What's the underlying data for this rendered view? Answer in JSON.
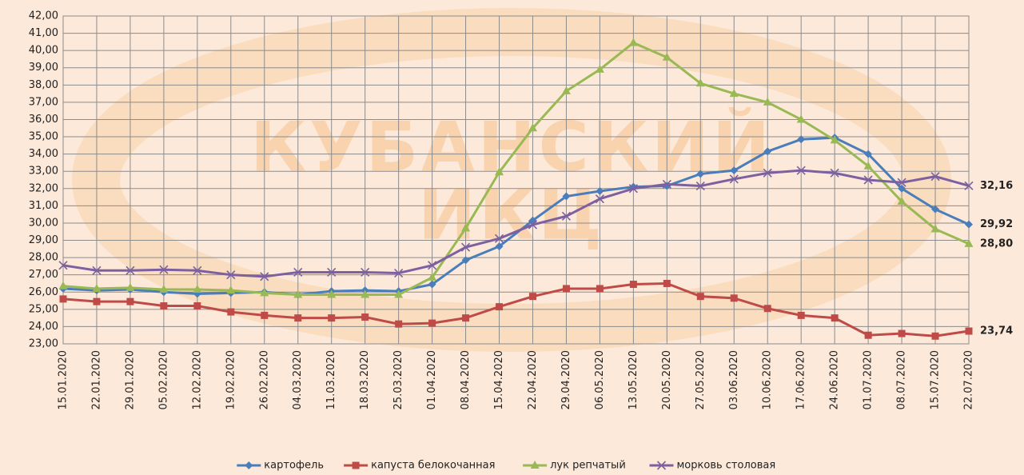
{
  "chart_data": {
    "type": "line",
    "watermark": [
      "КУБАНСКИЙ",
      "ИКЦ"
    ],
    "categories": [
      "15.01.2020",
      "22.01.2020",
      "29.01.2020",
      "05.02.2020",
      "12.02.2020",
      "19.02.2020",
      "26.02.2020",
      "04.03.2020",
      "11.03.2020",
      "18.03.2020",
      "25.03.2020",
      "01.04.2020",
      "08.04.2020",
      "15.04.2020",
      "22.04.2020",
      "29.04.2020",
      "06.05.2020",
      "13.05.2020",
      "20.05.2020",
      "27.05.2020",
      "03.06.2020",
      "10.06.2020",
      "17.06.2020",
      "24.06.2020",
      "01.07.2020",
      "08.07.2020",
      "15.07.2020",
      "22.07.2020"
    ],
    "series": [
      {
        "name": "картофель",
        "color": "#4a7ebb",
        "marker": "diamond",
        "values": [
          26.2,
          26.1,
          26.15,
          26.0,
          25.9,
          25.95,
          26.0,
          25.85,
          26.05,
          26.1,
          26.05,
          26.45,
          27.85,
          28.65,
          30.15,
          31.55,
          31.85,
          32.1,
          32.15,
          32.85,
          33.05,
          34.15,
          34.85,
          34.95,
          34.0,
          32.0,
          30.8,
          29.92
        ],
        "value_labels": [
          null,
          null,
          null,
          null,
          null,
          null,
          null,
          null,
          null,
          null,
          null,
          null,
          null,
          null,
          null,
          null,
          null,
          null,
          null,
          null,
          null,
          null,
          null,
          null,
          null,
          null,
          null,
          "29,92"
        ]
      },
      {
        "name": "капуста белокочанная",
        "color": "#be4b48",
        "marker": "square",
        "values": [
          25.6,
          25.45,
          25.45,
          25.2,
          25.2,
          24.85,
          24.65,
          24.5,
          24.5,
          24.55,
          24.15,
          24.2,
          24.5,
          25.15,
          25.75,
          26.2,
          26.2,
          26.45,
          26.5,
          25.75,
          25.65,
          25.05,
          24.65,
          24.5,
          23.5,
          23.6,
          23.45,
          23.74
        ],
        "value_labels": [
          null,
          null,
          null,
          null,
          null,
          null,
          null,
          null,
          null,
          null,
          null,
          null,
          null,
          null,
          null,
          null,
          null,
          null,
          null,
          null,
          null,
          null,
          null,
          null,
          null,
          null,
          null,
          "23,74"
        ]
      },
      {
        "name": "лук репчатый",
        "color": "#98b954",
        "marker": "triangle",
        "values": [
          26.35,
          26.2,
          26.25,
          26.15,
          26.15,
          26.1,
          25.95,
          25.85,
          25.85,
          25.85,
          25.85,
          26.85,
          29.7,
          32.95,
          35.5,
          37.65,
          38.9,
          40.45,
          39.6,
          38.1,
          37.5,
          37.0,
          36.0,
          34.8,
          33.3,
          31.25,
          29.65,
          28.8
        ],
        "value_labels": [
          null,
          null,
          null,
          null,
          null,
          null,
          null,
          null,
          null,
          null,
          null,
          null,
          null,
          null,
          null,
          null,
          null,
          null,
          null,
          null,
          null,
          null,
          null,
          null,
          null,
          null,
          null,
          "28,80"
        ]
      },
      {
        "name": "морковь столовая",
        "color": "#7d60a0",
        "marker": "x",
        "values": [
          27.55,
          27.25,
          27.25,
          27.3,
          27.25,
          27.0,
          26.9,
          27.15,
          27.15,
          27.15,
          27.1,
          27.55,
          28.6,
          29.1,
          29.9,
          30.4,
          31.4,
          32.0,
          32.25,
          32.15,
          32.55,
          32.9,
          33.05,
          32.9,
          32.5,
          32.35,
          32.7,
          32.16
        ],
        "value_labels": [
          null,
          null,
          null,
          null,
          null,
          null,
          null,
          null,
          null,
          null,
          null,
          null,
          null,
          null,
          null,
          null,
          null,
          null,
          null,
          null,
          null,
          null,
          null,
          null,
          null,
          null,
          null,
          "32,16"
        ]
      }
    ],
    "ylim": [
      23,
      42
    ],
    "yticks": [
      {
        "value": 23,
        "label": "23,00"
      },
      {
        "value": 24,
        "label": "24,00"
      },
      {
        "value": 25,
        "label": "25,00"
      },
      {
        "value": 26,
        "label": "26,00"
      },
      {
        "value": 27,
        "label": "27,00"
      },
      {
        "value": 28,
        "label": "28,00"
      },
      {
        "value": 29,
        "label": "29,00"
      },
      {
        "value": 30,
        "label": "30,00"
      },
      {
        "value": 31,
        "label": "31,00"
      },
      {
        "value": 32,
        "label": "32,00"
      },
      {
        "value": 33,
        "label": "33,00"
      },
      {
        "value": 34,
        "label": "34,00"
      },
      {
        "value": 35,
        "label": "35,00"
      },
      {
        "value": 36,
        "label": "36,00"
      },
      {
        "value": 37,
        "label": "37,00"
      },
      {
        "value": 38,
        "label": "38,00"
      },
      {
        "value": 39,
        "label": "39,00"
      },
      {
        "value": 40,
        "label": "40,00"
      },
      {
        "value": 41,
        "label": "41,00"
      },
      {
        "value": 42,
        "label": "42,00"
      }
    ],
    "grid": true,
    "legend": "bottom"
  }
}
